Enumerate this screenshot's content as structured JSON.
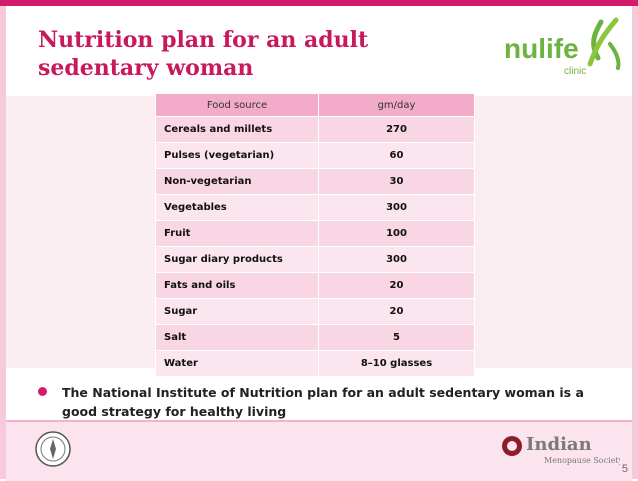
{
  "slide": {
    "title_lines": [
      "Nutrition plan for an adult",
      "sedentary woman"
    ],
    "logo": {
      "brand": "nulife",
      "sub": "clinic",
      "icon": "leaf-x-logo-icon"
    },
    "table": {
      "headers": [
        "Food source",
        "gm/day"
      ],
      "rows": [
        {
          "food": "Cereals and millets",
          "amount": "270"
        },
        {
          "food": "Pulses (vegetarian)",
          "amount": "60"
        },
        {
          "food": "Non-vegetarian",
          "amount": "30"
        },
        {
          "food": "Vegetables",
          "amount": "300"
        },
        {
          "food": "Fruit",
          "amount": "100"
        },
        {
          "food": "Sugar diary products",
          "amount": "300"
        },
        {
          "food": "Fats and oils",
          "amount": "20"
        },
        {
          "food": "Sugar",
          "amount": "20"
        },
        {
          "food": "Salt",
          "amount": "5"
        },
        {
          "food": "Water",
          "amount": "8–10 glasses"
        }
      ]
    },
    "bullet_text": " The  National Institute of  Nutrition plan for an adult sedentary woman is a good strategy for healthy living",
    "footer": {
      "ims_logo": {
        "line1": "Indian",
        "line2": "Menopause Society"
      },
      "page_number": "5"
    }
  },
  "colors": {
    "accent": "#d41b6b",
    "header_cell": "#f2abc8",
    "cell": "#f9d6e4",
    "logo_green": "#6cb33f"
  }
}
